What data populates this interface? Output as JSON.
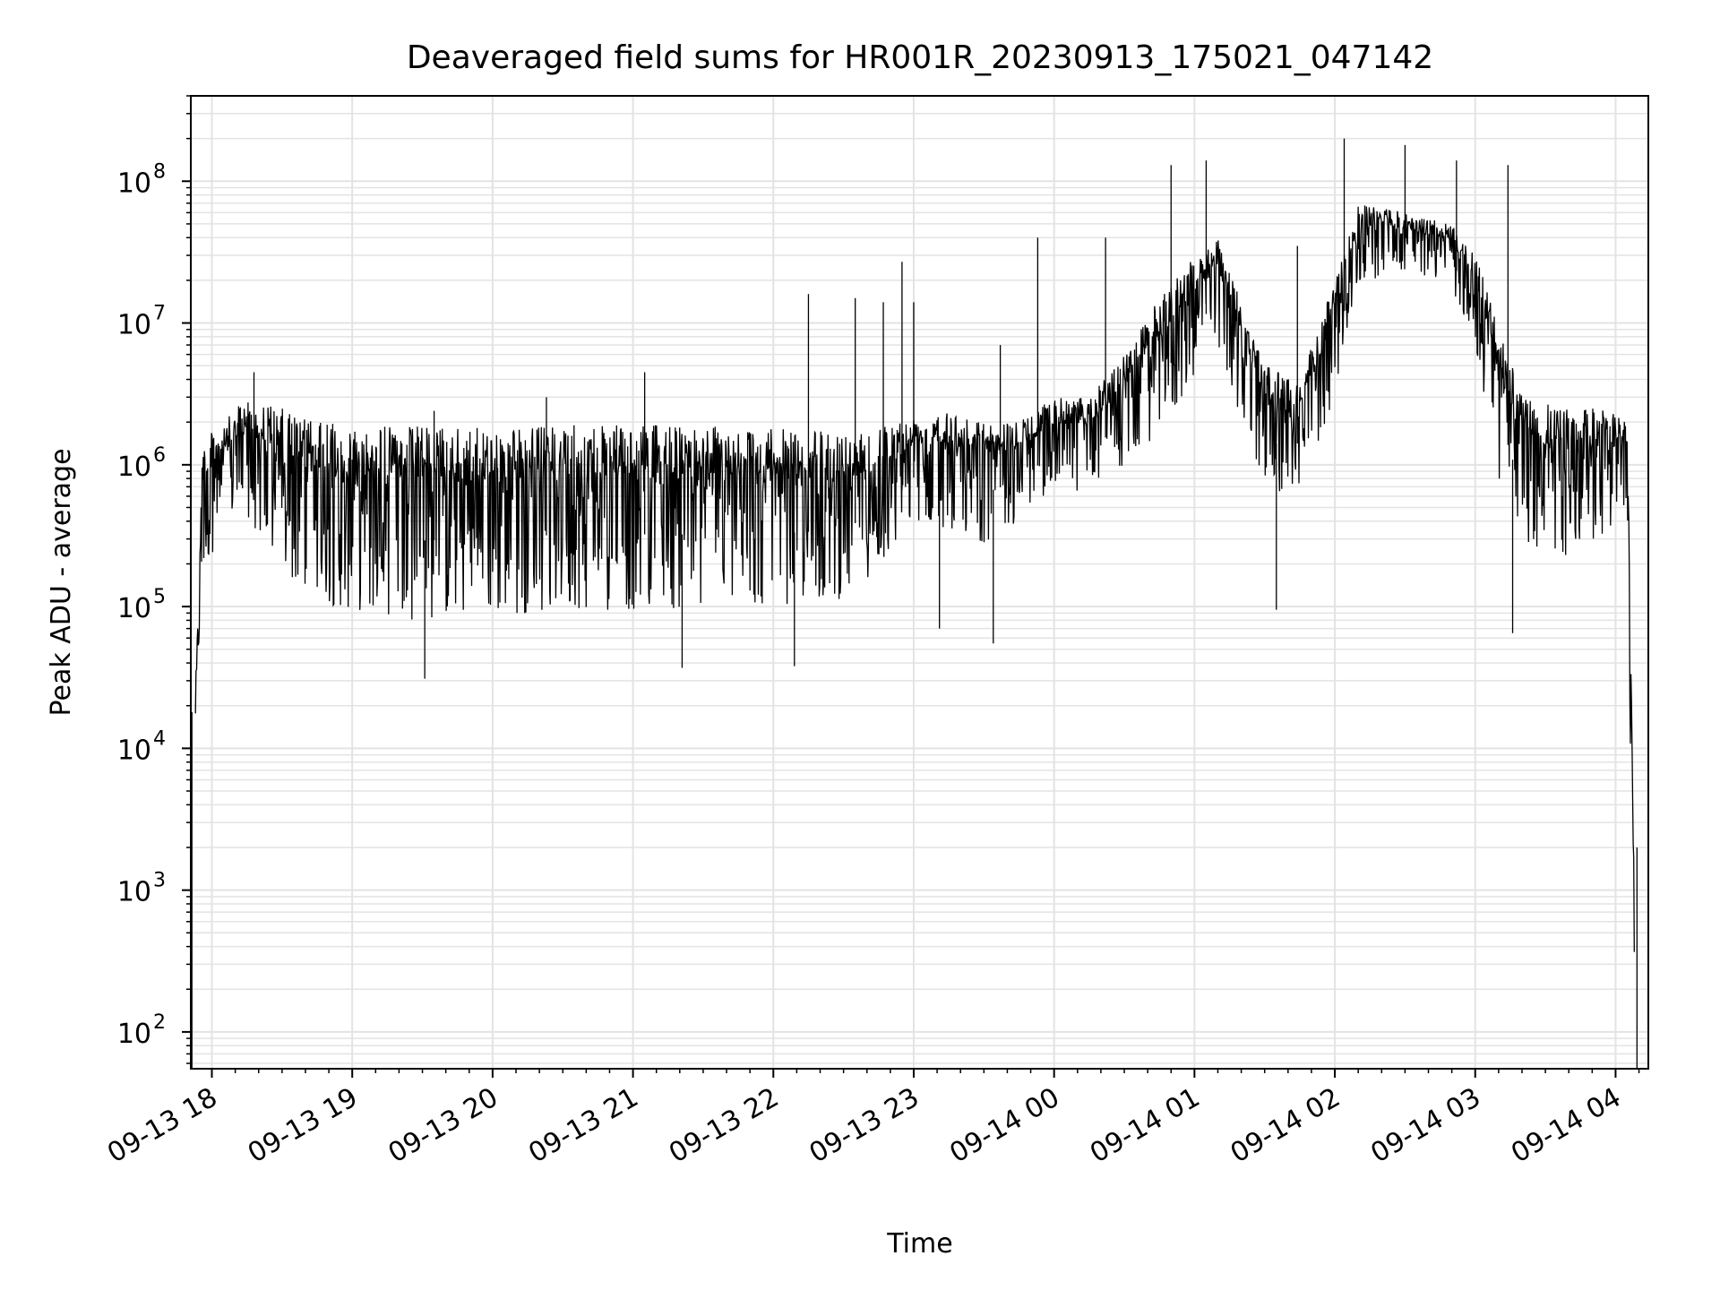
{
  "chart_data": {
    "type": "line",
    "title": "Deaveraged field sums for HR001R_20230913_175021_047142",
    "xlabel": "Time",
    "ylabel": "Peak ADU - average",
    "yscale": "log",
    "ylim": [
      55,
      400000000
    ],
    "xlim": [
      "09-13 17:51",
      "09-14 04:14"
    ],
    "grid": true,
    "line_color": "#000000",
    "grid_color": "#e3e3e3",
    "x_ticks": [
      "09-13 18",
      "09-13 19",
      "09-13 20",
      "09-13 21",
      "09-13 22",
      "09-13 23",
      "09-14 00",
      "09-14 01",
      "09-14 02",
      "09-14 03",
      "09-14 04"
    ],
    "y_ticks": [
      {
        "base": "10",
        "exp": "2",
        "value": 100
      },
      {
        "base": "10",
        "exp": "3",
        "value": 1000
      },
      {
        "base": "10",
        "exp": "4",
        "value": 10000
      },
      {
        "base": "10",
        "exp": "5",
        "value": 100000
      },
      {
        "base": "10",
        "exp": "6",
        "value": 1000000
      },
      {
        "base": "10",
        "exp": "7",
        "value": 10000000
      },
      {
        "base": "10",
        "exp": "8",
        "value": 100000000
      }
    ],
    "series": [
      {
        "envelope": [
          {
            "t": "09-13 17:53",
            "low": 13000,
            "high": 30000
          },
          {
            "t": "09-13 17:56",
            "low": 100000,
            "high": 1500000
          },
          {
            "t": "09-13 18:05",
            "low": 300000,
            "high": 2000000
          },
          {
            "t": "09-13 18:15",
            "low": 300000,
            "high": 3000000
          },
          {
            "t": "09-13 18:30",
            "low": 100000,
            "high": 2500000
          },
          {
            "t": "09-13 18:45",
            "low": 60000,
            "high": 2000000
          },
          {
            "t": "09-13 19:00",
            "low": 55000,
            "high": 1900000
          },
          {
            "t": "09-13 19:30",
            "low": 45000,
            "high": 1900000
          },
          {
            "t": "09-13 20:00",
            "low": 50000,
            "high": 1800000
          },
          {
            "t": "09-13 20:30",
            "low": 55000,
            "high": 1900000
          },
          {
            "t": "09-13 21:00",
            "low": 55000,
            "high": 1900000
          },
          {
            "t": "09-13 21:30",
            "low": 55000,
            "high": 1900000
          },
          {
            "t": "09-13 22:00",
            "low": 60000,
            "high": 1800000
          },
          {
            "t": "09-13 22:30",
            "low": 70000,
            "high": 1700000
          },
          {
            "t": "09-13 22:50",
            "low": 150000,
            "high": 2000000
          },
          {
            "t": "09-13 23:00",
            "low": 300000,
            "high": 2200000
          },
          {
            "t": "09-13 23:15",
            "low": 250000,
            "high": 2500000
          },
          {
            "t": "09-13 23:30",
            "low": 200000,
            "high": 2000000
          },
          {
            "t": "09-13 23:45",
            "low": 300000,
            "high": 2000000
          },
          {
            "t": "09-14 00:00",
            "low": 500000,
            "high": 3000000
          },
          {
            "t": "09-14 00:15",
            "low": 500000,
            "high": 3000000
          },
          {
            "t": "09-14 00:30",
            "low": 700000,
            "high": 6000000
          },
          {
            "t": "09-14 00:45",
            "low": 1000000,
            "high": 15000000
          },
          {
            "t": "09-14 01:00",
            "low": 3000000,
            "high": 30000000
          },
          {
            "t": "09-14 01:10",
            "low": 5000000,
            "high": 40000000
          },
          {
            "t": "09-14 01:20",
            "low": 1500000,
            "high": 15000000
          },
          {
            "t": "09-14 01:30",
            "low": 400000,
            "high": 5000000
          },
          {
            "t": "09-14 01:45",
            "low": 500000,
            "high": 4000000
          },
          {
            "t": "09-14 02:00",
            "low": 2000000,
            "high": 20000000
          },
          {
            "t": "09-14 02:10",
            "low": 15000000,
            "high": 70000000
          },
          {
            "t": "09-14 02:30",
            "low": 20000000,
            "high": 60000000
          },
          {
            "t": "09-14 02:50",
            "low": 15000000,
            "high": 50000000
          },
          {
            "t": "09-14 03:00",
            "low": 5000000,
            "high": 30000000
          },
          {
            "t": "09-14 03:10",
            "low": 500000,
            "high": 10000000
          },
          {
            "t": "09-14 03:20",
            "low": 150000,
            "high": 3000000
          },
          {
            "t": "09-14 03:40",
            "low": 150000,
            "high": 2500000
          },
          {
            "t": "09-14 04:00",
            "low": 200000,
            "high": 2500000
          },
          {
            "t": "09-14 04:05",
            "low": 500000,
            "high": 2000000
          },
          {
            "t": "09-14 04:07",
            "low": 800,
            "high": 20000
          },
          {
            "t": "09-14 04:08",
            "low": 60,
            "high": 1000
          }
        ],
        "spikes": [
          {
            "t": "09-13 18:18",
            "v": 4500000
          },
          {
            "t": "09-13 19:35",
            "v": 2400000
          },
          {
            "t": "09-13 20:23",
            "v": 3000000
          },
          {
            "t": "09-13 21:05",
            "v": 4500000
          },
          {
            "t": "09-13 22:15",
            "v": 16000000
          },
          {
            "t": "09-13 22:35",
            "v": 15000000
          },
          {
            "t": "09-13 22:47",
            "v": 14000000
          },
          {
            "t": "09-13 22:55",
            "v": 27000000
          },
          {
            "t": "09-13 23:00",
            "v": 14000000
          },
          {
            "t": "09-13 23:37",
            "v": 7000000
          },
          {
            "t": "09-13 23:53",
            "v": 40000000
          },
          {
            "t": "09-14 00:22",
            "v": 40000000
          },
          {
            "t": "09-14 00:50",
            "v": 130000000
          },
          {
            "t": "09-14 01:05",
            "v": 140000000
          },
          {
            "t": "09-14 01:44",
            "v": 35000000
          },
          {
            "t": "09-14 02:04",
            "v": 200000000
          },
          {
            "t": "09-14 02:30",
            "v": 180000000
          },
          {
            "t": "09-14 02:52",
            "v": 140000000
          },
          {
            "t": "09-14 03:14",
            "v": 130000000
          }
        ],
        "dips": [
          {
            "t": "09-13 19:31",
            "v": 31000
          },
          {
            "t": "09-13 21:21",
            "v": 37000
          },
          {
            "t": "09-13 22:09",
            "v": 38000
          },
          {
            "t": "09-13 23:11",
            "v": 70000
          },
          {
            "t": "09-13 23:34",
            "v": 55000
          },
          {
            "t": "09-14 01:35",
            "v": 95000
          },
          {
            "t": "09-14 03:16",
            "v": 65000
          }
        ]
      }
    ]
  }
}
